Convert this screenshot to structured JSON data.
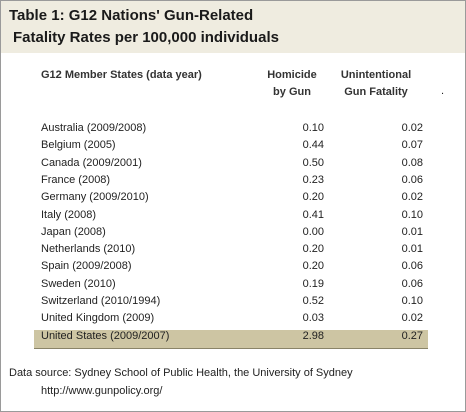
{
  "title": {
    "line1": "Table 1:  G12 Nations' Gun-Related",
    "line2": "Fatality Rates per 100,000 individuals"
  },
  "table": {
    "headers": [
      [
        "G12 Member States (data year)"
      ],
      [
        "Homicide",
        "by Gun"
      ],
      [
        "Unintentional",
        "Gun Fatality"
      ]
    ],
    "header_mark": ".",
    "rows": [
      [
        "Australia (2009/2008)",
        "0.10",
        "0.02"
      ],
      [
        "Belgium (2005)",
        "0.44",
        "0.07"
      ],
      [
        "Canada (2009/2001)",
        "0.50",
        "0.08"
      ],
      [
        "France (2008)",
        "0.23",
        "0.06"
      ],
      [
        "Germany (2009/2010)",
        "0.20",
        "0.02"
      ],
      [
        "Italy (2008)",
        "0.41",
        "0.10"
      ],
      [
        "Japan (2008)",
        "0.00",
        "0.01"
      ],
      [
        "Netherlands (2010)",
        "0.20",
        "0.01"
      ],
      [
        "Spain (2009/2008)",
        "0.20",
        "0.06"
      ],
      [
        "Sweden (2010)",
        "0.19",
        "0.06"
      ],
      [
        "Switzerland (2010/1994)",
        "0.52",
        "0.10"
      ],
      [
        "United Kingdom (2009)",
        "0.03",
        "0.02"
      ],
      [
        "United States (2009/2007)",
        "2.98",
        "0.27"
      ]
    ]
  },
  "source": {
    "line1": "Data source: Sydney School of Public Health, the University of Sydney",
    "line2": "http://www.gunpolicy.org/"
  }
}
